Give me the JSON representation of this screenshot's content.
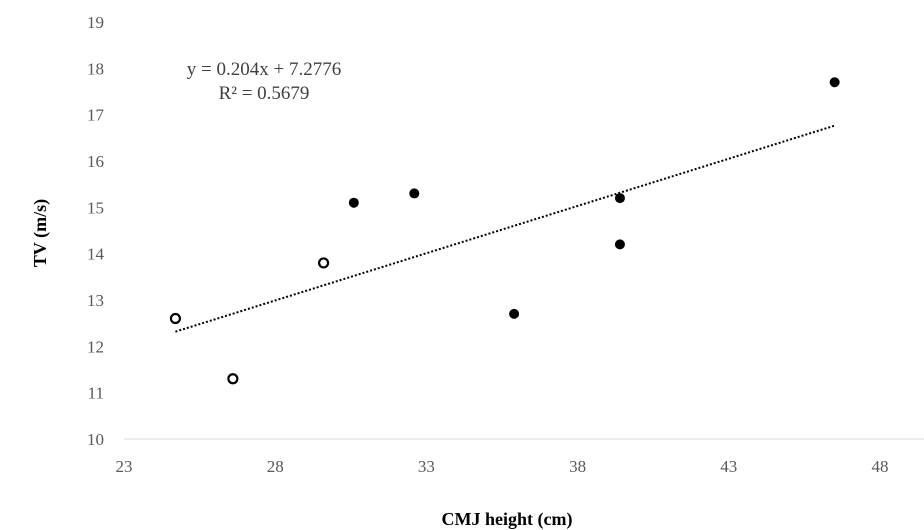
{
  "chart_data": {
    "type": "scatter",
    "title": "",
    "xlabel": "CMJ height (cm)",
    "ylabel": "TV (m/s)",
    "xlim": [
      23,
      48
    ],
    "ylim": [
      10,
      19
    ],
    "x_ticks": [
      "23",
      "28",
      "33",
      "38",
      "43",
      "48"
    ],
    "y_ticks": [
      "10",
      "11",
      "12",
      "13",
      "14",
      "15",
      "16",
      "17",
      "18",
      "19"
    ],
    "grid": false,
    "series": [
      {
        "marker": "open-circle",
        "color": "#000000",
        "points": [
          {
            "x": 24.7,
            "y": 12.6
          },
          {
            "x": 26.6,
            "y": 11.3
          },
          {
            "x": 29.6,
            "y": 13.8
          }
        ]
      },
      {
        "marker": "filled-circle",
        "color": "#000000",
        "points": [
          {
            "x": 30.6,
            "y": 15.1
          },
          {
            "x": 32.6,
            "y": 15.3
          },
          {
            "x": 35.9,
            "y": 12.7
          },
          {
            "x": 39.4,
            "y": 15.2
          },
          {
            "x": 39.4,
            "y": 14.2
          },
          {
            "x": 46.5,
            "y": 17.7
          }
        ]
      }
    ],
    "trendline": {
      "style": "dotted",
      "slope": 0.204,
      "intercept": 7.2776,
      "x_start": 24.7,
      "x_end": 46.5,
      "equation_text": "y = 0.204x + 7.2776",
      "r2_text": "R² = 0.5679"
    }
  }
}
